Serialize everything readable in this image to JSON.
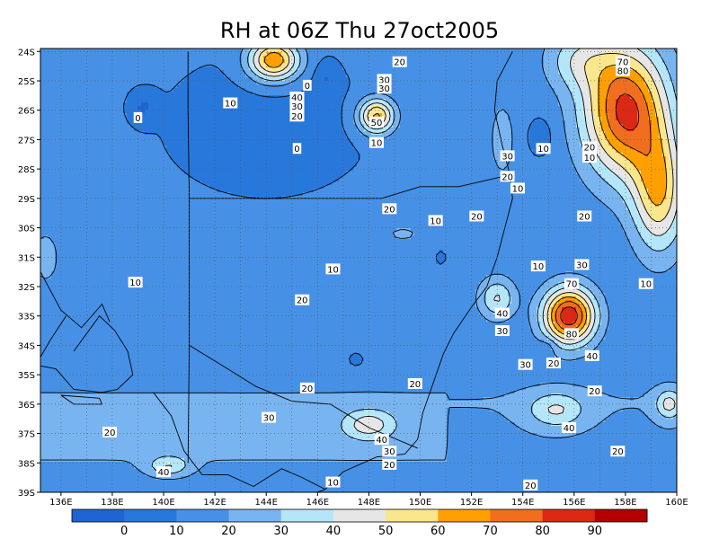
{
  "chart_data": {
    "type": "heatmap",
    "title": "RH at 06Z Thu 27oct2005",
    "x_ticks": [
      "136E",
      "138E",
      "140E",
      "142E",
      "144E",
      "146E",
      "148E",
      "150E",
      "152E",
      "154E",
      "156E",
      "158E",
      "160E"
    ],
    "y_ticks": [
      "24S",
      "25S",
      "26S",
      "27S",
      "28S",
      "29S",
      "30S",
      "31S",
      "32S",
      "33S",
      "34S",
      "35S",
      "36S",
      "37S",
      "38S",
      "39S"
    ],
    "xlim": [
      135.2,
      160
    ],
    "ylim": [
      -39,
      -23.9
    ],
    "grid": true,
    "levels": [
      0,
      10,
      20,
      30,
      40,
      50,
      60,
      70,
      80,
      90
    ],
    "colors": [
      "#1e64d2",
      "#2878dc",
      "#4691e6",
      "#78b4f0",
      "#b4e6fa",
      "#e6e6e6",
      "#fae68c",
      "#ffa000",
      "#f06e1e",
      "#dc2814",
      "#b40000"
    ],
    "contour_labels": [
      {
        "text": "0",
        "lon": 139.0,
        "lat": -26.25
      },
      {
        "text": "0",
        "lon": 145.6,
        "lat": -25.15
      },
      {
        "text": "0",
        "lon": 145.2,
        "lat": -27.3
      },
      {
        "text": "10",
        "lon": 142.6,
        "lat": -25.75
      },
      {
        "text": "40",
        "lon": 145.2,
        "lat": -25.55
      },
      {
        "text": "30",
        "lon": 145.2,
        "lat": -25.85
      },
      {
        "text": "20",
        "lon": 145.2,
        "lat": -26.2
      },
      {
        "text": "30",
        "lon": 148.6,
        "lat": -24.95
      },
      {
        "text": "30",
        "lon": 148.6,
        "lat": -25.25
      },
      {
        "text": "50",
        "lon": 148.3,
        "lat": -26.4
      },
      {
        "text": "10",
        "lon": 148.3,
        "lat": -27.1
      },
      {
        "text": "20",
        "lon": 149.2,
        "lat": -24.35
      },
      {
        "text": "70",
        "lon": 157.9,
        "lat": -24.35
      },
      {
        "text": "80",
        "lon": 157.9,
        "lat": -24.65
      },
      {
        "text": "30",
        "lon": 153.4,
        "lat": -27.55
      },
      {
        "text": "10",
        "lon": 154.8,
        "lat": -27.3
      },
      {
        "text": "20",
        "lon": 156.6,
        "lat": -27.25
      },
      {
        "text": "10",
        "lon": 156.6,
        "lat": -27.6
      },
      {
        "text": "20",
        "lon": 153.4,
        "lat": -28.25
      },
      {
        "text": "10",
        "lon": 153.8,
        "lat": -28.65
      },
      {
        "text": "20",
        "lon": 148.8,
        "lat": -29.35
      },
      {
        "text": "10",
        "lon": 150.6,
        "lat": -29.75
      },
      {
        "text": "20",
        "lon": 152.2,
        "lat": -29.6
      },
      {
        "text": "20",
        "lon": 156.4,
        "lat": -29.6
      },
      {
        "text": "10",
        "lon": 146.6,
        "lat": -31.4
      },
      {
        "text": "10",
        "lon": 154.6,
        "lat": -31.3
      },
      {
        "text": "10",
        "lon": 138.9,
        "lat": -31.85
      },
      {
        "text": "20",
        "lon": 145.4,
        "lat": -32.45
      },
      {
        "text": "30",
        "lon": 156.3,
        "lat": -31.25
      },
      {
        "text": "70",
        "lon": 155.9,
        "lat": -31.9
      },
      {
        "text": "10",
        "lon": 158.8,
        "lat": -31.9
      },
      {
        "text": "40",
        "lon": 153.2,
        "lat": -32.9
      },
      {
        "text": "30",
        "lon": 153.2,
        "lat": -33.5
      },
      {
        "text": "80",
        "lon": 155.9,
        "lat": -33.6
      },
      {
        "text": "30",
        "lon": 154.1,
        "lat": -34.65
      },
      {
        "text": "20",
        "lon": 155.2,
        "lat": -34.6
      },
      {
        "text": "40",
        "lon": 156.7,
        "lat": -34.35
      },
      {
        "text": "20",
        "lon": 145.6,
        "lat": -35.45
      },
      {
        "text": "20",
        "lon": 149.8,
        "lat": -35.3
      },
      {
        "text": "20",
        "lon": 156.8,
        "lat": -35.55
      },
      {
        "text": "30",
        "lon": 144.1,
        "lat": -36.45
      },
      {
        "text": "40",
        "lon": 155.8,
        "lat": -36.8
      },
      {
        "text": "20",
        "lon": 137.9,
        "lat": -36.95
      },
      {
        "text": "40",
        "lon": 148.5,
        "lat": -37.2
      },
      {
        "text": "30",
        "lon": 148.8,
        "lat": -37.6
      },
      {
        "text": "20",
        "lon": 148.8,
        "lat": -38.05
      },
      {
        "text": "20",
        "lon": 157.7,
        "lat": -37.6
      },
      {
        "text": "40",
        "lon": 140.0,
        "lat": -38.3
      },
      {
        "text": "10",
        "lon": 146.6,
        "lat": -38.65
      },
      {
        "text": "20",
        "lon": 154.3,
        "lat": -38.75
      }
    ]
  }
}
